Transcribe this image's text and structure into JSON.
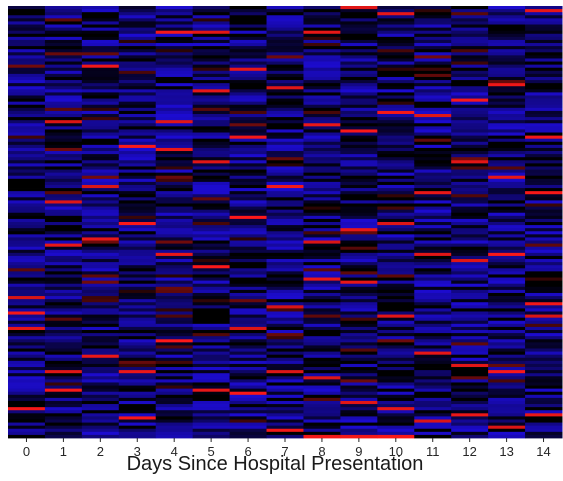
{
  "chart_data": {
    "type": "heatmap",
    "title": "",
    "xlabel": "Days Since Hospital Presentation",
    "ylabel": "",
    "x": [
      0,
      1,
      2,
      3,
      4,
      5,
      6,
      7,
      8,
      9,
      10,
      11,
      12,
      13,
      14
    ],
    "x_tick_labels": [
      "0",
      "1",
      "2",
      "3",
      "4",
      "5",
      "6",
      "7",
      "8",
      "9",
      "10",
      "11",
      "12",
      "13",
      "14"
    ],
    "row_count": 140,
    "color_scale": {
      "low": "#2a10e6",
      "mid": "#000000",
      "high": "#ff2a2a"
    },
    "grid": false,
    "legend": "none",
    "highlights": [
      {
        "day": 0,
        "rows": [
          94,
          99,
          104,
          130
        ]
      },
      {
        "day": 1,
        "rows": [
          37,
          63,
          77,
          118,
          124
        ]
      },
      {
        "day": 2,
        "rows": [
          19,
          58,
          75,
          113
        ]
      },
      {
        "day": 3,
        "rows": [
          45,
          70,
          118,
          133
        ]
      },
      {
        "day": 4,
        "rows": [
          8,
          37,
          46,
          80,
          108
        ]
      },
      {
        "day": 5,
        "rows": [
          8,
          27,
          50,
          84,
          124
        ]
      },
      {
        "day": 6,
        "rows": [
          20,
          42,
          68,
          104,
          125
        ]
      },
      {
        "day": 7,
        "rows": [
          26,
          58,
          97,
          118,
          137
        ]
      },
      {
        "day": 8,
        "rows": [
          8,
          38,
          76,
          88,
          120,
          139
        ]
      },
      {
        "day": 9,
        "rows": [
          0,
          40,
          72,
          89,
          128,
          139
        ]
      },
      {
        "day": 10,
        "rows": [
          2,
          34,
          70,
          100,
          130,
          139
        ]
      },
      {
        "day": 11,
        "rows": [
          35,
          60,
          80,
          112,
          134
        ]
      },
      {
        "day": 12,
        "rows": [
          30,
          50,
          82,
          116,
          132
        ]
      },
      {
        "day": 13,
        "rows": [
          25,
          55,
          80,
          118,
          136
        ]
      },
      {
        "day": 14,
        "rows": [
          1,
          42,
          60,
          96,
          100,
          132
        ]
      }
    ]
  }
}
